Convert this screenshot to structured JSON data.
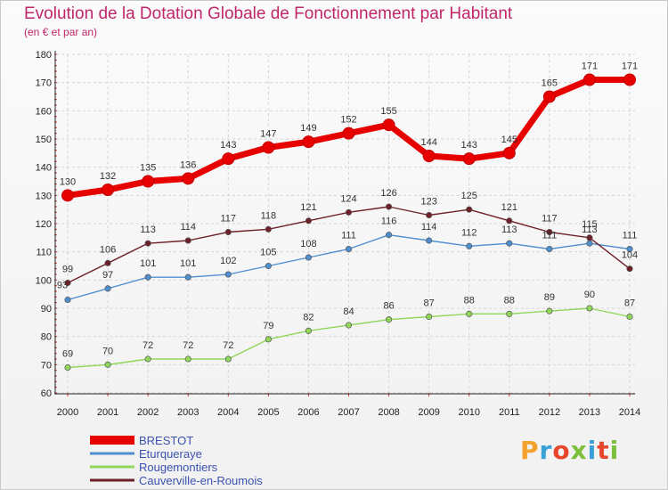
{
  "header": {
    "title": "Evolution de la Dotation Globale de Fonctionnement par Habitant",
    "subtitle": "(en € et par an)"
  },
  "logo": {
    "text": "Proxiti",
    "colors": [
      "#f2a12d",
      "#3aa0d8",
      "#e8462b",
      "#7cbf3a",
      "#3aa0d8",
      "#e8462b",
      "#7cbf3a"
    ]
  },
  "chart_data": {
    "type": "line",
    "x": [
      "2000",
      "2001",
      "2002",
      "2003",
      "2004",
      "2005",
      "2006",
      "2007",
      "2008",
      "2009",
      "2010",
      "2011",
      "2012",
      "2013",
      "2014"
    ],
    "ylim": [
      60,
      180
    ],
    "yticks": [
      60,
      70,
      80,
      90,
      100,
      110,
      120,
      130,
      140,
      150,
      160,
      170,
      180
    ],
    "grid": true,
    "legend_position": "bottom-left",
    "series": [
      {
        "name": "BRESTOT",
        "color": "#e60000",
        "values": [
          130,
          132,
          135,
          136,
          143,
          147,
          149,
          152,
          155,
          144,
          143,
          145,
          165,
          171,
          171
        ]
      },
      {
        "name": "Eturqueraye",
        "color": "#4f8fd0",
        "values": [
          93,
          97,
          101,
          101,
          102,
          105,
          108,
          111,
          116,
          114,
          112,
          113,
          111,
          113,
          111
        ]
      },
      {
        "name": "Rougemontiers",
        "color": "#8fd65a",
        "values": [
          69,
          70,
          72,
          72,
          72,
          79,
          82,
          84,
          86,
          87,
          88,
          88,
          89,
          90,
          87
        ]
      },
      {
        "name": "Cauverville-en-Roumois",
        "color": "#6e1f28",
        "values": [
          99,
          106,
          113,
          114,
          117,
          118,
          121,
          124,
          126,
          123,
          125,
          121,
          117,
          115,
          104
        ]
      }
    ]
  }
}
